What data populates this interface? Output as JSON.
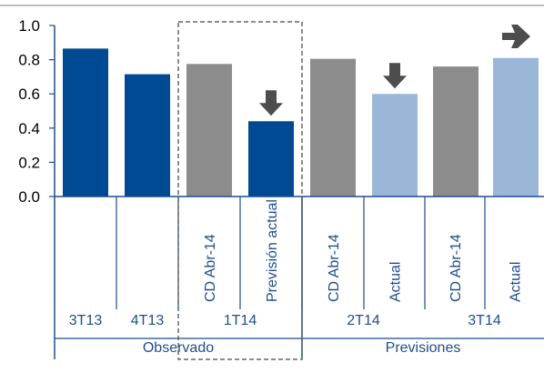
{
  "chart_data": {
    "type": "bar",
    "title": "",
    "xlabel": "",
    "ylabel": "",
    "ylim": [
      0,
      1.0
    ],
    "yticks": [
      "0.0",
      "0.2",
      "0.4",
      "0.6",
      "0.8",
      "1.0"
    ],
    "grid": false,
    "bars": [
      {
        "label": "",
        "value": 0.865,
        "kind": "observed"
      },
      {
        "label": "",
        "value": 0.715,
        "kind": "observed"
      },
      {
        "label": "CD Abr-14",
        "value": 0.775,
        "kind": "gray"
      },
      {
        "label": "Previsión actual",
        "value": 0.44,
        "kind": "observed",
        "arrow": "down"
      },
      {
        "label": "CD Abr-14",
        "value": 0.805,
        "kind": "gray"
      },
      {
        "label": "Actual",
        "value": 0.6,
        "kind": "light",
        "arrow": "down"
      },
      {
        "label": "CD Abr-14",
        "value": 0.76,
        "kind": "gray"
      },
      {
        "label": "Actual",
        "value": 0.81,
        "kind": "light",
        "arrow": "right"
      }
    ],
    "periods": [
      {
        "label": "3T13",
        "start": 0,
        "end": 0
      },
      {
        "label": "4T13",
        "start": 1,
        "end": 1
      },
      {
        "label": "1T14",
        "start": 2,
        "end": 3
      },
      {
        "label": "2T14",
        "start": 4,
        "end": 5
      },
      {
        "label": "3T14",
        "start": 6,
        "end": 7
      }
    ],
    "groups": [
      {
        "label": "Observado",
        "start": 0,
        "end": 3
      },
      {
        "label": "Previsiones",
        "start": 4,
        "end": 7
      }
    ],
    "highlight_box": {
      "start": 2,
      "end": 3
    },
    "colors": {
      "observed": "#004a93",
      "gray": "#8c8c8c",
      "light": "#9ab7d8",
      "arrow": "#4d4d4d",
      "axis": "#1f4e8c",
      "text": "#1f4e8c",
      "dashed": "#666666",
      "top_rule": "#bfbfbf"
    }
  }
}
